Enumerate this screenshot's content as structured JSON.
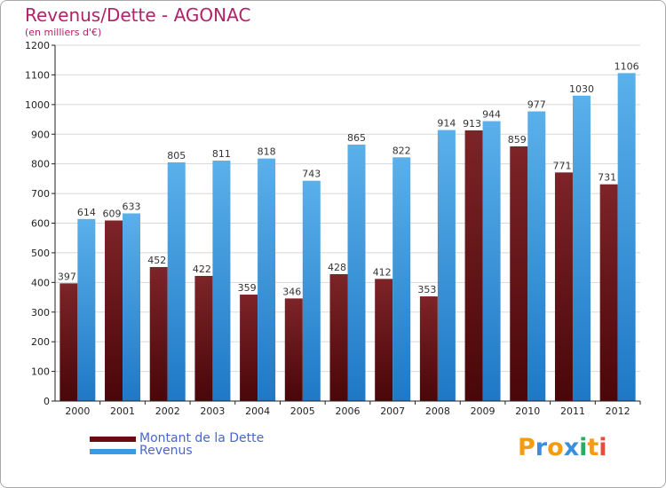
{
  "header": {
    "title": "Revenus/Dette - AGONAC",
    "subtitle": "(en milliers d'€)"
  },
  "legend": {
    "items": [
      {
        "label": "Montant de la Dette",
        "color": "#6b0a12"
      },
      {
        "label": "Revenus",
        "color": "#3a9be0"
      }
    ]
  },
  "logo": {
    "text": "Proxiti"
  },
  "colors": {
    "debt_top": "#7d2428",
    "debt_bottom": "#4a0608",
    "revenue_top": "#5ab0ea",
    "revenue_bottom": "#1f78c6",
    "grid": "#d8d8d8",
    "axis": "#222222",
    "title": "#b0226a"
  },
  "chart_data": {
    "type": "bar",
    "title": "Revenus/Dette - AGONAC",
    "subtitle": "(en milliers d'€)",
    "xlabel": "",
    "ylabel": "",
    "ylim": [
      0,
      1200
    ],
    "yticks": [
      0,
      100,
      200,
      300,
      400,
      500,
      600,
      700,
      800,
      900,
      1000,
      1100,
      1200
    ],
    "grid": true,
    "legend_position": "bottom-left",
    "categories": [
      "2000",
      "2001",
      "2002",
      "2003",
      "2004",
      "2005",
      "2006",
      "2007",
      "2008",
      "2009",
      "2010",
      "2011",
      "2012"
    ],
    "series": [
      {
        "name": "Montant de la Dette",
        "values": [
          397,
          609,
          452,
          422,
          359,
          346,
          428,
          412,
          353,
          913,
          859,
          771,
          731
        ]
      },
      {
        "name": "Revenus",
        "values": [
          614,
          633,
          805,
          811,
          818,
          743,
          865,
          822,
          914,
          944,
          977,
          1030,
          1106
        ]
      }
    ]
  }
}
